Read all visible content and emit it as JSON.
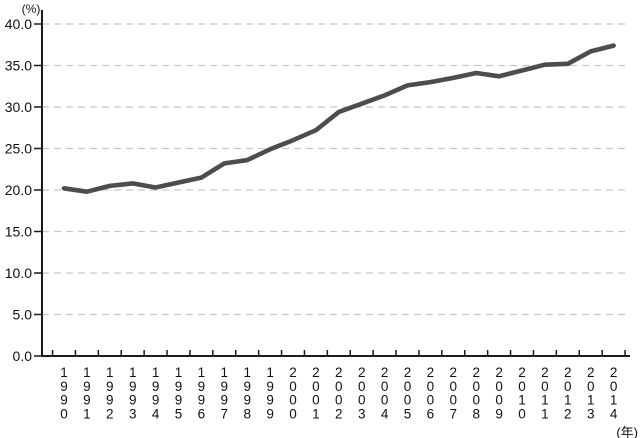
{
  "chart_data": {
    "type": "line",
    "title": "",
    "y_unit_label": "(%)",
    "x_unit_label": "(年)",
    "categories": [
      "1990",
      "1991",
      "1992",
      "1993",
      "1994",
      "1995",
      "1996",
      "1997",
      "1998",
      "1999",
      "2000",
      "2001",
      "2002",
      "2003",
      "2004",
      "2005",
      "2006",
      "2007",
      "2008",
      "2009",
      "2010",
      "2011",
      "2012",
      "2013",
      "2014"
    ],
    "values": [
      20.2,
      19.8,
      20.5,
      20.8,
      20.3,
      20.9,
      21.5,
      23.2,
      23.6,
      24.9,
      26.0,
      27.2,
      29.4,
      30.4,
      31.4,
      32.6,
      33.0,
      33.5,
      34.1,
      33.7,
      34.4,
      35.1,
      35.2,
      36.7,
      37.4
    ],
    "ylim": [
      0,
      40
    ],
    "ytick_step": 5,
    "ytick_labels": [
      "40.0",
      "35.0",
      "30.0",
      "25.0",
      "20.0",
      "15.0",
      "10.0",
      "5.0",
      "0.0"
    ],
    "grid": "horizontal-dashed",
    "legend": "none",
    "colors": {
      "line": "#4d4d4d",
      "grid": "#c8c8c8",
      "axis": "#1a1a1a",
      "text": "#111111",
      "background": "#ffffff"
    }
  }
}
